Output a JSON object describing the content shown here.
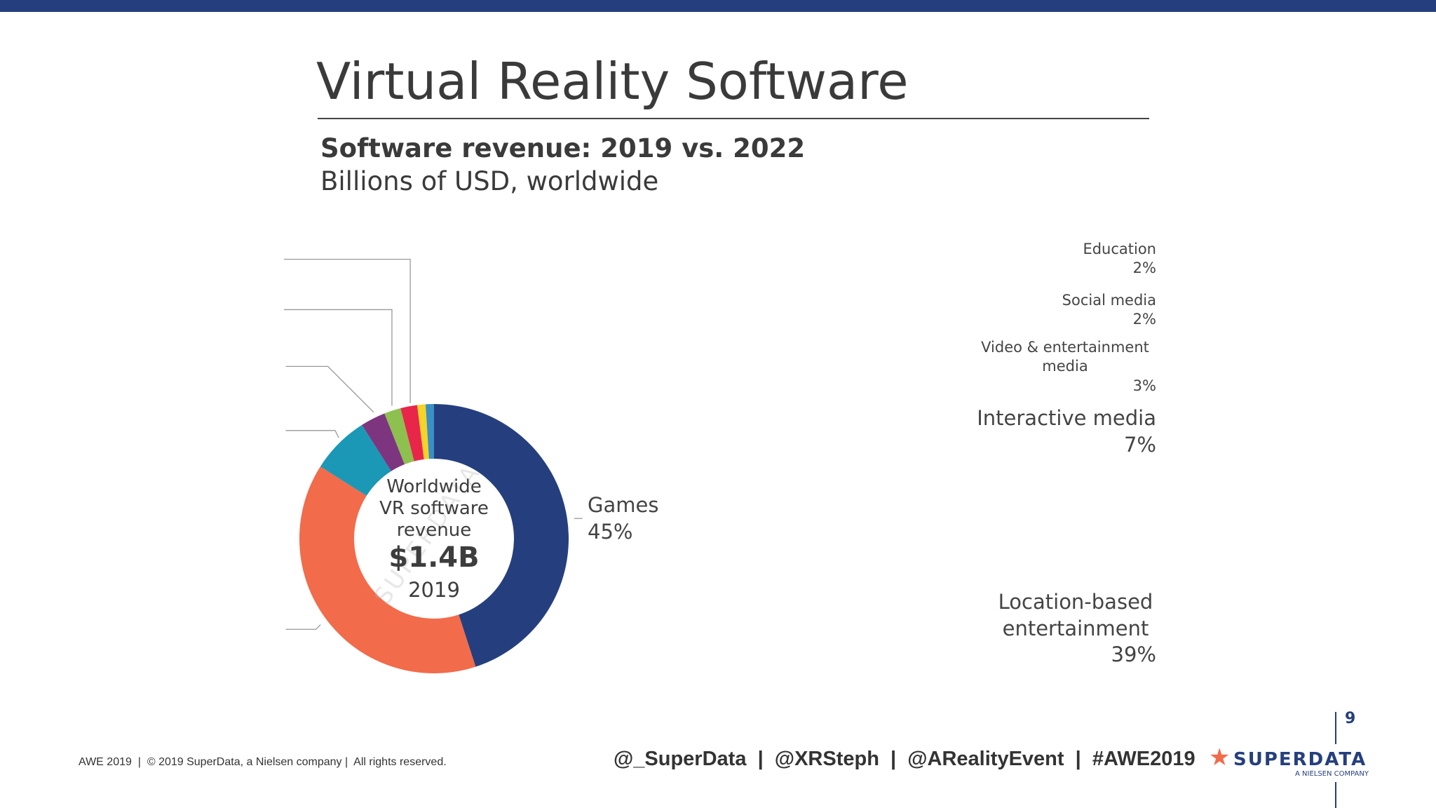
{
  "header": {
    "title": "Virtual Reality Software",
    "subtitle": "Software revenue: 2019 vs. 2022",
    "subtitle2": "Billions of USD, worldwide"
  },
  "chart_data": {
    "type": "pie",
    "donut": true,
    "categories": [
      "Games",
      "Location-based entertainment",
      "Interactive media",
      "Video & entertainment media",
      "Social media",
      "Education",
      null,
      null
    ],
    "values": [
      45,
      39,
      7,
      3,
      2,
      2,
      1,
      1
    ],
    "value_labels": [
      "45%",
      "39%",
      "7%",
      "3%",
      "2%",
      "2%",
      null,
      null
    ],
    "colors": [
      "#253f7e",
      "#f26b4a",
      "#1b98b5",
      "#7d3580",
      "#8dc04f",
      "#e8264a",
      "#f5d327",
      "#3a8fc4"
    ],
    "center": {
      "line1": "Worldwide",
      "line2": "VR software",
      "line3": "revenue",
      "total": "$1.4B",
      "year": "2019"
    },
    "watermark": "SUPERDATA"
  },
  "footer": {
    "copyright": "AWE 2019  |  © 2019 SuperData, a Nielsen company |  All rights reserved.",
    "handles": "@_SuperData  |  @XRSteph  |  @ARealityEvent  |  #AWE2019",
    "logo": "SUPERDATA",
    "logo_sub": "A NIELSEN COMPANY",
    "page": "9"
  }
}
